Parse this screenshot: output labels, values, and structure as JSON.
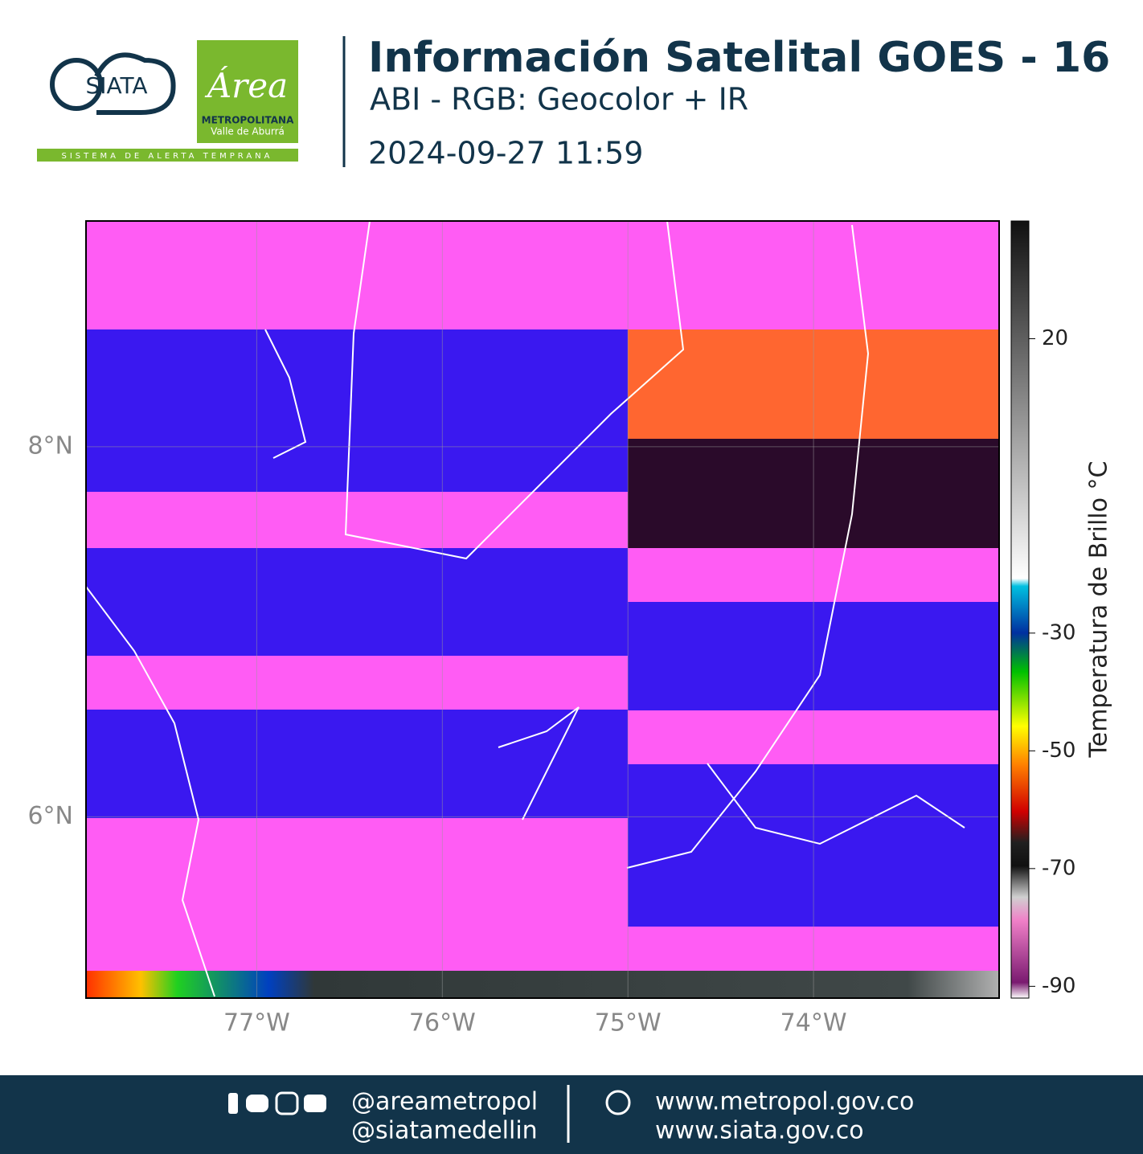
{
  "header": {
    "logo_siata": "SIATA",
    "logo_area": "Área",
    "logo_metro": "METROPOLITANA",
    "logo_valle": "Valle de Aburrá",
    "logo_tagline": "SISTEMA DE ALERTA TEMPRANA",
    "title": "Información Satelital GOES - 16",
    "subtitle": "ABI - RGB: Geocolor + IR",
    "datetime": "2024-09-27 11:59"
  },
  "map": {
    "xlim": [
      -77.92,
      -73.0
    ],
    "ylim": [
      5.02,
      9.22
    ],
    "xticks": [
      {
        "value": -77,
        "label": "77°W"
      },
      {
        "value": -76,
        "label": "76°W"
      },
      {
        "value": -75,
        "label": "75°W"
      },
      {
        "value": -74,
        "label": "74°W"
      }
    ],
    "yticks": [
      {
        "value": 6,
        "label": "6°N"
      },
      {
        "value": 8,
        "label": "8°N"
      }
    ],
    "grid": true,
    "colorbar": {
      "label": "Temperatura de Brillo °C",
      "lim": [
        -92,
        40
      ],
      "ticks": [
        20,
        -30,
        -50,
        -70,
        -90
      ]
    }
  },
  "footer": {
    "social_1": "@areametropol",
    "social_2": "@siatamedellin",
    "web_1": "www.metropol.gov.co",
    "web_2": "www.siata.gov.co"
  }
}
